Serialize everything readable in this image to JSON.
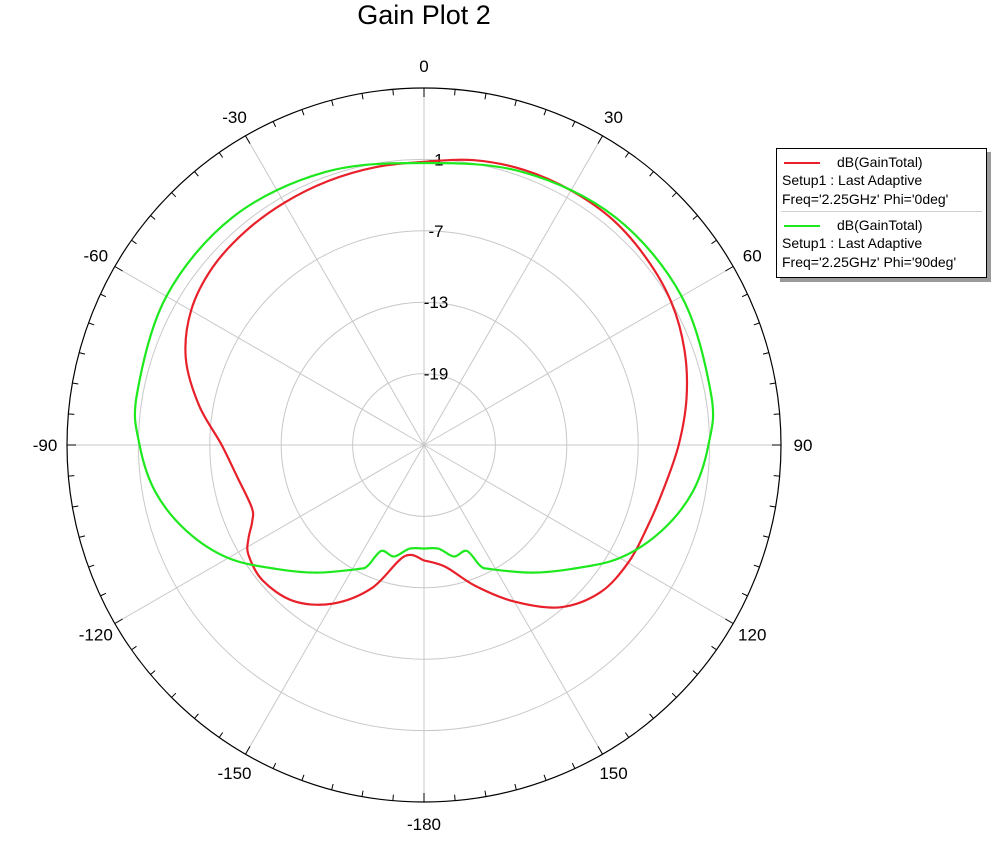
{
  "chart_data": {
    "type": "polar",
    "title": "Gain Plot 2",
    "angle_ticks": [
      0,
      30,
      60,
      90,
      120,
      150,
      -180,
      -150,
      -120,
      -90,
      -60,
      -30
    ],
    "radial_ticks": [
      -1,
      -7,
      -13,
      -19
    ],
    "radial_range": [
      -25,
      5
    ],
    "grid": true,
    "legend_position": "top-right",
    "series": [
      {
        "name": "dB(GainTotal)",
        "setup": "Setup1 : Last Adaptive",
        "condition": "Freq='2.25GHz' Phi='0deg'",
        "color": "#e8202a",
        "theta": [
          -180,
          -170,
          -160,
          -150,
          -140,
          -130,
          -122,
          -118,
          -114,
          -110,
          -100,
          -90,
          -80,
          -70,
          -60,
          -50,
          -40,
          -30,
          -20,
          -10,
          0,
          10,
          20,
          30,
          40,
          50,
          60,
          70,
          80,
          90,
          100,
          110,
          120,
          130,
          140,
          150,
          160,
          170,
          180
        ],
        "values": [
          -15.3,
          -15.5,
          -12.2,
          -9.6,
          -7.9,
          -7.3,
          -7.6,
          -8.3,
          -9.2,
          -9.6,
          -9.1,
          -8.0,
          -5.8,
          -3.7,
          -2.4,
          -1.8,
          -1.6,
          -1.5,
          -1.4,
          -1.3,
          -1.2,
          -0.7,
          -0.4,
          -0.3,
          -0.3,
          -0.6,
          -1.0,
          -1.7,
          -2.6,
          -3.6,
          -4.5,
          -5.0,
          -5.2,
          -5.7,
          -7.2,
          -9.8,
          -12.4,
          -14.6,
          -15.3
        ]
      },
      {
        "name": "dB(GainTotal)",
        "setup": "Setup1 : Last Adaptive",
        "condition": "Freq='2.25GHz' Phi='90deg'",
        "color": "#1ee81e",
        "theta": [
          -180,
          -172,
          -165,
          -158,
          -155,
          -152,
          -140,
          -130,
          -120,
          -110,
          -100,
          -90,
          -80,
          -60,
          -40,
          -20,
          0,
          20,
          40,
          60,
          80,
          90,
          100,
          110,
          120,
          130,
          140,
          152,
          155,
          158,
          165,
          172,
          180
        ],
        "values": [
          -16.3,
          -16.2,
          -15.3,
          -15.4,
          -13.8,
          -13.2,
          -11.0,
          -8.8,
          -6.0,
          -3.8,
          -2.1,
          -1.1,
          -0.5,
          0.0,
          0.0,
          -0.6,
          -1.3,
          -0.6,
          0.0,
          0.0,
          -0.5,
          -1.1,
          -2.1,
          -3.8,
          -6.0,
          -8.8,
          -11.0,
          -13.2,
          -13.8,
          -15.4,
          -15.3,
          -16.2,
          -16.3
        ]
      }
    ]
  }
}
